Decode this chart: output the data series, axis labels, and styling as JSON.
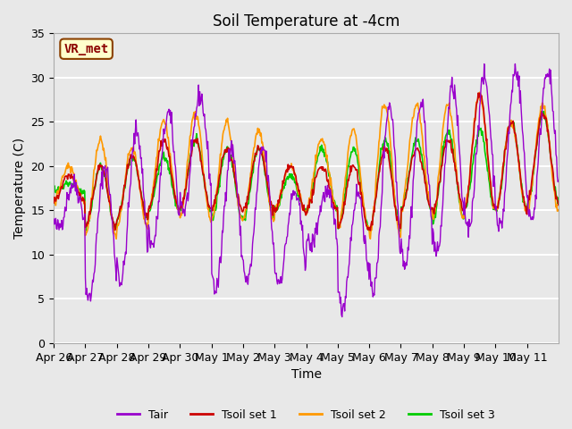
{
  "title": "Soil Temperature at -4cm",
  "xlabel": "Time",
  "ylabel": "Temperature (C)",
  "ylim": [
    0,
    35
  ],
  "yticks": [
    0,
    5,
    10,
    15,
    20,
    25,
    30,
    35
  ],
  "legend_label": "VR_met",
  "series_labels": [
    "Tair",
    "Tsoil set 1",
    "Tsoil set 2",
    "Tsoil set 3"
  ],
  "colors": [
    "#9900cc",
    "#cc0000",
    "#ff9900",
    "#00cc00"
  ],
  "background_color": "#e8e8e8",
  "n_days": 16,
  "points_per_day": 48,
  "x_tick_labels": [
    "Apr 26",
    "Apr 27",
    "Apr 28",
    "Apr 29",
    "Apr 30",
    "May 1",
    "May 2",
    "May 3",
    "May 4",
    "May 5",
    "May 6",
    "May 7",
    "May 8",
    "May 9",
    "May 10",
    "May 11"
  ],
  "title_fontsize": 12,
  "axis_label_fontsize": 10,
  "tick_fontsize": 9,
  "tair_daily_min": [
    13,
    5,
    7,
    11,
    15,
    6,
    7,
    7,
    11,
    4,
    6,
    9,
    10,
    13,
    13,
    14
  ],
  "tair_daily_max": [
    18,
    20,
    24,
    26,
    28,
    22,
    22,
    17,
    17,
    17,
    27,
    27,
    29,
    30,
    31,
    31
  ],
  "soil1_daily_min": [
    16,
    13,
    14,
    15,
    15,
    15,
    15,
    15,
    15,
    13,
    13,
    15,
    15,
    15,
    15,
    16
  ],
  "soil1_daily_max": [
    19,
    20,
    21,
    23,
    23,
    22,
    22,
    20,
    20,
    20,
    22,
    22,
    23,
    28,
    25,
    26
  ],
  "soil2_daily_min": [
    16,
    12,
    13,
    15,
    14,
    14,
    14,
    15,
    15,
    13,
    12,
    15,
    14,
    15,
    15,
    15
  ],
  "soil2_daily_max": [
    20,
    23,
    22,
    25,
    26,
    25,
    24,
    20,
    23,
    24,
    27,
    27,
    27,
    28,
    25,
    27
  ],
  "soil3_daily_min": [
    17,
    13,
    14,
    15,
    15,
    14,
    14,
    15,
    15,
    13,
    13,
    15,
    14,
    15,
    15,
    16
  ],
  "soil3_daily_max": [
    18,
    20,
    21,
    21,
    23,
    22,
    22,
    19,
    22,
    22,
    23,
    23,
    24,
    24,
    25,
    26
  ]
}
